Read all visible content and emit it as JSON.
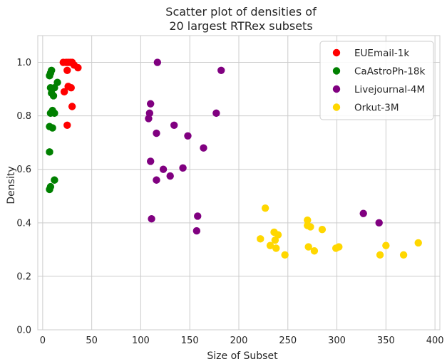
{
  "chart_data": {
    "type": "scatter",
    "title_lines": [
      "Scatter plot of densities of",
      "20 largest RTRex subsets"
    ],
    "xlabel": "Size of Subset",
    "ylabel": "Density",
    "xlim": [
      -5,
      405
    ],
    "ylim": [
      0,
      1.1
    ],
    "xticks": [
      0,
      50,
      100,
      150,
      200,
      250,
      300,
      350,
      400
    ],
    "yticks": [
      0.0,
      0.2,
      0.4,
      0.6,
      0.8,
      1.0
    ],
    "xtick_labels": [
      "0",
      "50",
      "100",
      "150",
      "200",
      "250",
      "300",
      "350",
      "400"
    ],
    "ytick_labels": [
      "0.0",
      "0.2",
      "0.4",
      "0.6",
      "0.8",
      "1.0"
    ],
    "grid": true,
    "legend_position": "top-right",
    "series": [
      {
        "name": "EUEmail-1k",
        "color": "#ff0000",
        "points": [
          [
            21,
            1.0
          ],
          [
            24,
            1.0
          ],
          [
            26,
            1.0
          ],
          [
            28,
            1.0
          ],
          [
            30,
            1.0
          ],
          [
            32,
            0.99
          ],
          [
            36,
            0.98
          ],
          [
            25,
            0.97
          ],
          [
            26,
            0.91
          ],
          [
            29,
            0.905
          ],
          [
            22,
            0.89
          ],
          [
            30,
            0.835
          ],
          [
            25,
            0.765
          ]
        ]
      },
      {
        "name": "CaAstroPh-18k",
        "color": "#008000",
        "points": [
          [
            9,
            0.97
          ],
          [
            8,
            0.96
          ],
          [
            7,
            0.95
          ],
          [
            15,
            0.925
          ],
          [
            8,
            0.905
          ],
          [
            12,
            0.905
          ],
          [
            9,
            0.885
          ],
          [
            11,
            0.875
          ],
          [
            10,
            0.82
          ],
          [
            8,
            0.81
          ],
          [
            12,
            0.81
          ],
          [
            7,
            0.76
          ],
          [
            10,
            0.755
          ],
          [
            7,
            0.665
          ],
          [
            12,
            0.56
          ],
          [
            8,
            0.535
          ],
          [
            7,
            0.525
          ]
        ]
      },
      {
        "name": "Livejournal-4M",
        "color": "#800080",
        "points": [
          [
            117,
            1.0
          ],
          [
            182,
            0.97
          ],
          [
            110,
            0.845
          ],
          [
            109,
            0.81
          ],
          [
            108,
            0.79
          ],
          [
            177,
            0.81
          ],
          [
            134,
            0.765
          ],
          [
            116,
            0.735
          ],
          [
            148,
            0.725
          ],
          [
            164,
            0.68
          ],
          [
            110,
            0.63
          ],
          [
            123,
            0.6
          ],
          [
            143,
            0.605
          ],
          [
            130,
            0.575
          ],
          [
            116,
            0.56
          ],
          [
            327,
            0.435
          ],
          [
            158,
            0.425
          ],
          [
            111,
            0.415
          ],
          [
            343,
            0.4
          ],
          [
            157,
            0.37
          ]
        ]
      },
      {
        "name": "Orkut-3M",
        "color": "#ffd700",
        "points": [
          [
            227,
            0.455
          ],
          [
            270,
            0.41
          ],
          [
            270,
            0.39
          ],
          [
            273,
            0.385
          ],
          [
            285,
            0.375
          ],
          [
            236,
            0.365
          ],
          [
            240,
            0.355
          ],
          [
            222,
            0.34
          ],
          [
            237,
            0.335
          ],
          [
            232,
            0.315
          ],
          [
            238,
            0.305
          ],
          [
            271,
            0.31
          ],
          [
            299,
            0.305
          ],
          [
            302,
            0.31
          ],
          [
            350,
            0.315
          ],
          [
            383,
            0.325
          ],
          [
            277,
            0.295
          ],
          [
            247,
            0.28
          ],
          [
            344,
            0.28
          ],
          [
            368,
            0.28
          ]
        ]
      }
    ]
  }
}
